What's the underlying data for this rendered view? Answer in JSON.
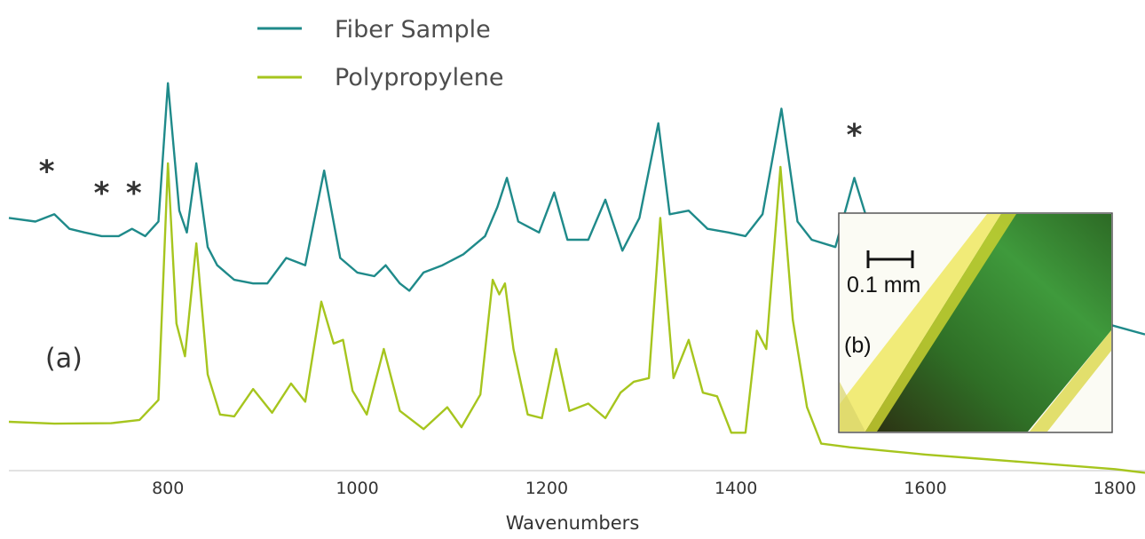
{
  "chart_data": {
    "type": "line",
    "xlabel": "Wavenumbers",
    "ylabel": "",
    "xlim": [
      632,
      1832
    ],
    "x_ticks": [
      800,
      1000,
      1200,
      1400,
      1600,
      1800
    ],
    "x_tick_labels": [
      "800",
      "1000",
      "1200",
      "1400",
      "1600",
      "1800"
    ],
    "y_axis_shown": false,
    "grid": false,
    "legend_placement": "top-left",
    "series": [
      {
        "name": "Fiber Sample",
        "color": "#1f8a8a",
        "x": [
          632,
          660,
          680,
          696,
          712,
          730,
          748,
          762,
          776,
          790,
          800,
          812,
          820,
          830,
          842,
          852,
          870,
          890,
          905,
          925,
          945,
          965,
          982,
          1000,
          1018,
          1030,
          1045,
          1055,
          1070,
          1090,
          1112,
          1135,
          1148,
          1158,
          1170,
          1192,
          1208,
          1222,
          1244,
          1262,
          1280,
          1298,
          1318,
          1330,
          1350,
          1370,
          1392,
          1410,
          1428,
          1448,
          1465,
          1480,
          1505,
          1525,
          1545,
          1566,
          1590,
          1620,
          1660,
          1700,
          1740,
          1790,
          1832
        ],
        "y": [
          0.56,
          0.55,
          0.57,
          0.53,
          0.52,
          0.51,
          0.51,
          0.53,
          0.51,
          0.55,
          0.93,
          0.58,
          0.52,
          0.71,
          0.48,
          0.43,
          0.39,
          0.38,
          0.38,
          0.45,
          0.43,
          0.69,
          0.45,
          0.41,
          0.4,
          0.43,
          0.38,
          0.36,
          0.41,
          0.43,
          0.46,
          0.51,
          0.59,
          0.67,
          0.55,
          0.52,
          0.63,
          0.5,
          0.5,
          0.61,
          0.47,
          0.56,
          0.82,
          0.57,
          0.58,
          0.53,
          0.52,
          0.51,
          0.57,
          0.86,
          0.55,
          0.5,
          0.48,
          0.67,
          0.5,
          0.44,
          0.4,
          0.38,
          0.36,
          0.34,
          0.31,
          0.27,
          0.24
        ]
      },
      {
        "name": "Polypropylene",
        "color": "#a6c51e",
        "x": [
          632,
          680,
          740,
          770,
          790,
          800,
          809,
          818,
          830,
          842,
          855,
          870,
          890,
          910,
          930,
          945,
          962,
          975,
          985,
          995,
          1010,
          1028,
          1045,
          1070,
          1095,
          1110,
          1130,
          1143,
          1150,
          1156,
          1165,
          1180,
          1195,
          1210,
          1224,
          1244,
          1262,
          1278,
          1292,
          1308,
          1320,
          1334,
          1350,
          1365,
          1380,
          1395,
          1410,
          1422,
          1432,
          1447,
          1460,
          1475,
          1490,
          1520,
          1560,
          1600,
          1650,
          1700,
          1750,
          1800,
          1832
        ],
        "y": [
          0.0,
          -0.005,
          -0.004,
          0.005,
          0.06,
          0.71,
          0.27,
          0.18,
          0.49,
          0.13,
          0.02,
          0.015,
          0.09,
          0.025,
          0.105,
          0.055,
          0.33,
          0.215,
          0.225,
          0.085,
          0.02,
          0.2,
          0.03,
          -0.02,
          0.04,
          -0.015,
          0.075,
          0.39,
          0.35,
          0.38,
          0.2,
          0.02,
          0.01,
          0.2,
          0.03,
          0.05,
          0.01,
          0.08,
          0.11,
          0.12,
          0.56,
          0.12,
          0.225,
          0.08,
          0.07,
          -0.03,
          -0.03,
          0.25,
          0.2,
          0.7,
          0.28,
          0.04,
          -0.06,
          -0.07,
          -0.08,
          -0.09,
          -0.1,
          -0.11,
          -0.12,
          -0.13,
          -0.14
        ]
      }
    ],
    "annotations": [
      {
        "text": "*",
        "x": 672,
        "y": 0.66
      },
      {
        "text": "*",
        "x": 730,
        "y": 0.6
      },
      {
        "text": "*",
        "x": 764,
        "y": 0.6
      },
      {
        "text": "*",
        "x": 1525,
        "y": 0.76
      },
      {
        "text": "(a)",
        "x": 690,
        "y": 0.15
      }
    ],
    "inset": {
      "label": "(b)",
      "scale_bar_text": "0.1 mm"
    }
  }
}
